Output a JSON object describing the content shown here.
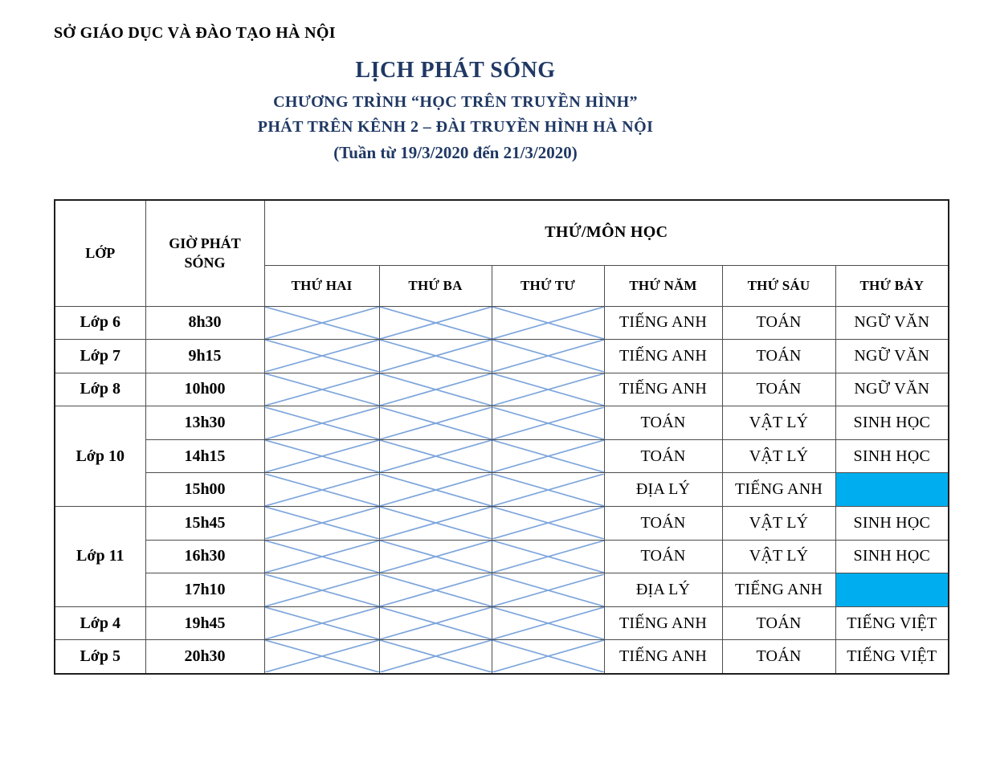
{
  "page": {
    "org_header": "SỞ GIÁO DỤC VÀ ĐÀO TẠO HÀ NỘI",
    "title": "LỊCH PHÁT SÓNG",
    "subtitle_program": "CHƯƠNG TRÌNH “HỌC TRÊN TRUYỀN HÌNH”",
    "subtitle_channel": "PHÁT TRÊN KÊNH 2 – ĐÀI TRUYỀN HÌNH HÀ NỘI",
    "week_range": "(Tuần từ 19/3/2020 đến 21/3/2020)"
  },
  "colors": {
    "title_navy": "#1F3864",
    "time_red": "#FF0000",
    "cross_blue": "#7EA6DC",
    "highlight_blue": "#00AEEF"
  },
  "table": {
    "header": {
      "class_col": "LỚP",
      "time_col": "GIỜ PHÁT SÓNG",
      "days_group": "THỨ/MÔN HỌC",
      "days": [
        "THỨ HAI",
        "THỨ BA",
        "THỨ TƯ",
        "THỨ NĂM",
        "THỨ SÁU",
        "THỨ BẢY"
      ]
    },
    "rows": [
      {
        "class": "Lớp 6",
        "class_rowspan": 1,
        "time": "8h30",
        "time_red": false,
        "cells": [
          {
            "type": "crossed"
          },
          {
            "type": "crossed"
          },
          {
            "type": "crossed"
          },
          {
            "type": "subject",
            "text": "TIẾNG ANH"
          },
          {
            "type": "subject",
            "text": "TOÁN"
          },
          {
            "type": "subject",
            "text": "NGỮ VĂN"
          }
        ]
      },
      {
        "class": "Lớp 7",
        "class_rowspan": 1,
        "time": "9h15",
        "time_red": true,
        "cells": [
          {
            "type": "crossed"
          },
          {
            "type": "crossed"
          },
          {
            "type": "crossed"
          },
          {
            "type": "subject",
            "text": "TIẾNG ANH"
          },
          {
            "type": "subject",
            "text": "TOÁN"
          },
          {
            "type": "subject",
            "text": "NGỮ VĂN"
          }
        ]
      },
      {
        "class": "Lớp 8",
        "class_rowspan": 1,
        "time": "10h00",
        "time_red": true,
        "cells": [
          {
            "type": "crossed"
          },
          {
            "type": "crossed"
          },
          {
            "type": "crossed"
          },
          {
            "type": "subject",
            "text": "TIẾNG ANH"
          },
          {
            "type": "subject",
            "text": "TOÁN"
          },
          {
            "type": "subject",
            "text": "NGỮ VĂN"
          }
        ]
      },
      {
        "class": "Lớp 10",
        "class_rowspan": 3,
        "time": "13h30",
        "time_red": false,
        "cells": [
          {
            "type": "crossed"
          },
          {
            "type": "crossed"
          },
          {
            "type": "crossed"
          },
          {
            "type": "subject",
            "text": "TOÁN"
          },
          {
            "type": "subject",
            "text": "VẬT LÝ"
          },
          {
            "type": "subject",
            "text": "SINH HỌC"
          }
        ]
      },
      {
        "time": "14h15",
        "time_red": false,
        "cells": [
          {
            "type": "crossed"
          },
          {
            "type": "crossed"
          },
          {
            "type": "crossed"
          },
          {
            "type": "subject",
            "text": "TOÁN"
          },
          {
            "type": "subject",
            "text": "VẬT LÝ"
          },
          {
            "type": "subject",
            "text": "SINH HỌC"
          }
        ]
      },
      {
        "time": "15h00",
        "time_red": false,
        "cells": [
          {
            "type": "crossed"
          },
          {
            "type": "crossed"
          },
          {
            "type": "crossed"
          },
          {
            "type": "subject",
            "text": "ĐỊA LÝ"
          },
          {
            "type": "subject",
            "text": "TIẾNG ANH"
          },
          {
            "type": "highlight"
          }
        ]
      },
      {
        "class": "Lớp 11",
        "class_rowspan": 3,
        "time": "15h45",
        "time_red": false,
        "cells": [
          {
            "type": "crossed"
          },
          {
            "type": "crossed"
          },
          {
            "type": "crossed"
          },
          {
            "type": "subject",
            "text": "TOÁN"
          },
          {
            "type": "subject",
            "text": "VẬT LÝ"
          },
          {
            "type": "subject",
            "text": "SINH HỌC"
          }
        ]
      },
      {
        "time": "16h30",
        "time_red": false,
        "cells": [
          {
            "type": "crossed"
          },
          {
            "type": "crossed"
          },
          {
            "type": "crossed"
          },
          {
            "type": "subject",
            "text": "TOÁN"
          },
          {
            "type": "subject",
            "text": "VẬT LÝ"
          },
          {
            "type": "subject",
            "text": "SINH HỌC"
          }
        ]
      },
      {
        "time": "17h10",
        "time_red": true,
        "cells": [
          {
            "type": "crossed"
          },
          {
            "type": "crossed"
          },
          {
            "type": "crossed"
          },
          {
            "type": "subject",
            "text": "ĐỊA LÝ"
          },
          {
            "type": "subject",
            "text": "TIẾNG ANH"
          },
          {
            "type": "highlight"
          }
        ]
      },
      {
        "class": "Lớp 4",
        "class_rowspan": 1,
        "time": "19h45",
        "time_red": false,
        "cells": [
          {
            "type": "crossed"
          },
          {
            "type": "crossed"
          },
          {
            "type": "crossed"
          },
          {
            "type": "subject",
            "text": "TIẾNG ANH"
          },
          {
            "type": "subject",
            "text": "TOÁN"
          },
          {
            "type": "subject",
            "text": "TIẾNG VIỆT"
          }
        ]
      },
      {
        "class": "Lớp 5",
        "class_rowspan": 1,
        "time": "20h30",
        "time_red": false,
        "cells": [
          {
            "type": "crossed"
          },
          {
            "type": "crossed"
          },
          {
            "type": "crossed"
          },
          {
            "type": "subject",
            "text": "TIẾNG ANH"
          },
          {
            "type": "subject",
            "text": "TOÁN"
          },
          {
            "type": "subject",
            "text": "TIẾNG VIỆT"
          }
        ]
      }
    ]
  }
}
